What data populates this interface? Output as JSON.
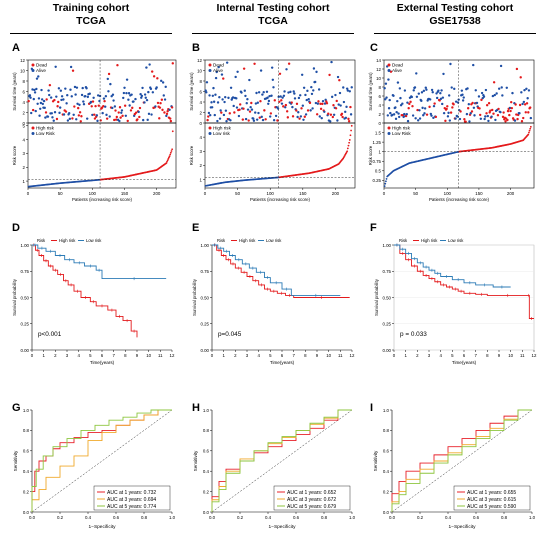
{
  "columns": [
    {
      "title": "Training cohort",
      "subtitle": "TCGA"
    },
    {
      "title": "Internal Testing cohort",
      "subtitle": "TCGA"
    },
    {
      "title": "External Testing cohort",
      "subtitle": "GSE17538"
    }
  ],
  "colors": {
    "red": "#e41a1c",
    "blue": "#1f4fa5",
    "roc_red": "#e8212a",
    "roc_orange": "#f0a92b",
    "roc_green": "#8dc63f",
    "km_red": "#e31a1c",
    "km_blue": "#2c7bb6"
  },
  "chart_data": [
    {
      "panel": "A",
      "type": "scatter",
      "kind": "risk-scatter",
      "ylabel": "Survival time (years)",
      "legend": [
        "Dead",
        "Alive"
      ],
      "legend_position": "top-left",
      "n": 225,
      "cutoff_x": 112,
      "yticks": [
        0,
        2,
        4,
        6,
        8,
        10,
        12
      ],
      "ylim": [
        0,
        12
      ]
    },
    {
      "panel": "A",
      "type": "line",
      "kind": "risk-score",
      "ylabel": "Risk score",
      "xlabel": "Patients (increasing risk score)",
      "legend": [
        "High risk",
        "Low Risk"
      ],
      "legend_position": "top-left",
      "x": [
        1,
        50,
        100,
        112,
        150,
        200,
        215,
        220,
        224,
        225
      ],
      "y": [
        0.6,
        0.85,
        1.05,
        1.1,
        1.3,
        1.8,
        2.3,
        2.8,
        3.3,
        4.6
      ],
      "xticks": [
        0,
        50,
        100,
        150,
        200
      ],
      "yticks": [
        1,
        2,
        3,
        4,
        5
      ],
      "ylim": [
        0.5,
        5.2
      ],
      "cutoff_y": 1.1
    },
    {
      "panel": "B",
      "type": "scatter",
      "kind": "risk-scatter",
      "ylabel": "Survival time (years)",
      "legend": [
        "Dead",
        "Alive"
      ],
      "legend_position": "top-left",
      "n": 225,
      "cutoff_x": 113,
      "yticks": [
        0,
        2,
        4,
        6,
        8,
        10,
        12
      ],
      "ylim": [
        0,
        12
      ]
    },
    {
      "panel": "B",
      "type": "line",
      "kind": "risk-score",
      "ylabel": "Risk score",
      "xlabel": "Patients (increasing risk score)",
      "legend": [
        "High risk",
        "Low risk"
      ],
      "legend_position": "top-left",
      "x": [
        1,
        30,
        60,
        113,
        160,
        190,
        205,
        212,
        218,
        222,
        225
      ],
      "y": [
        0.55,
        0.8,
        0.95,
        1.15,
        1.45,
        1.75,
        2.1,
        2.5,
        3.0,
        3.8,
        4.8
      ],
      "xticks": [
        0,
        50,
        100,
        150,
        200
      ],
      "yticks": [
        1,
        2,
        3,
        4
      ],
      "ylim": [
        0.4,
        5.0
      ],
      "cutoff_y": 1.15
    },
    {
      "panel": "C",
      "type": "scatter",
      "kind": "risk-scatter",
      "ylabel": "Survival time (years)",
      "legend": [
        "Dead",
        "Alive"
      ],
      "legend_position": "top-left",
      "n": 232,
      "cutoff_x": 118,
      "yticks": [
        0,
        2,
        4,
        6,
        8,
        10,
        12,
        14
      ],
      "ylim": [
        0,
        14
      ]
    },
    {
      "panel": "C",
      "type": "line",
      "kind": "risk-score",
      "ylabel": "Risk score",
      "xlabel": "Patients (increasing risk score)",
      "legend": [
        "High risk",
        "Low Risk"
      ],
      "legend_position": "top-left",
      "x": [
        1,
        5,
        15,
        40,
        118,
        170,
        200,
        220,
        228,
        232
      ],
      "y": [
        0.1,
        0.35,
        0.5,
        0.7,
        1.0,
        1.1,
        1.2,
        1.3,
        1.45,
        1.65
      ],
      "xticks": [
        0,
        50,
        100,
        150,
        200
      ],
      "yticks": [
        0.25,
        0.5,
        0.75,
        1,
        1.25,
        1.5
      ],
      "ylim": [
        0.05,
        1.75
      ],
      "cutoff_y": 1.0
    },
    {
      "panel": "D",
      "type": "line",
      "kind": "km",
      "ylabel": "Survival probability",
      "xlabel": "Time(years)",
      "legend_title": "Risk",
      "legend": [
        "High risk",
        "Low risk"
      ],
      "annotation": "p<0.001",
      "xticks": [
        0,
        1,
        2,
        3,
        4,
        5,
        6,
        7,
        8,
        9,
        10,
        11,
        12
      ],
      "yticks": [
        0,
        0.25,
        0.5,
        0.75,
        1
      ],
      "xlim": [
        0,
        12
      ],
      "ylim": [
        0,
        1
      ],
      "series": [
        {
          "name": "High risk",
          "x": [
            0,
            0.3,
            0.6,
            1.0,
            1.4,
            1.8,
            2.2,
            2.7,
            3.1,
            3.6,
            4.2,
            5.0,
            5.5,
            6.5,
            7.2,
            7.8,
            8.5,
            9.0
          ],
          "y": [
            1,
            0.95,
            0.9,
            0.85,
            0.8,
            0.76,
            0.72,
            0.66,
            0.62,
            0.56,
            0.5,
            0.46,
            0.42,
            0.38,
            0.32,
            0.28,
            0.18,
            0.12
          ]
        },
        {
          "name": "Low risk",
          "x": [
            0,
            0.5,
            1.2,
            2.0,
            2.8,
            3.6,
            4.5,
            5.5,
            6.0,
            11.5
          ],
          "y": [
            1,
            0.97,
            0.94,
            0.9,
            0.86,
            0.83,
            0.8,
            0.76,
            0.68,
            0.68
          ]
        }
      ]
    },
    {
      "panel": "E",
      "type": "line",
      "kind": "km",
      "ylabel": "Survival probability",
      "xlabel": "Time(years)",
      "legend_title": "Risk",
      "legend": [
        "High risk",
        "Low risk"
      ],
      "annotation": "p=0.045",
      "xticks": [
        0,
        1,
        2,
        3,
        4,
        5,
        6,
        7,
        8,
        9,
        10,
        11,
        12
      ],
      "yticks": [
        0,
        0.25,
        0.5,
        0.75,
        1
      ],
      "xlim": [
        0,
        12
      ],
      "ylim": [
        0,
        1
      ],
      "series": [
        {
          "name": "High risk",
          "x": [
            0,
            0.4,
            0.8,
            1.2,
            1.6,
            2.0,
            2.5,
            3.0,
            3.5,
            4.0,
            4.5,
            5.0,
            5.6,
            6.3,
            7.0,
            11.8
          ],
          "y": [
            1,
            0.95,
            0.9,
            0.86,
            0.82,
            0.78,
            0.74,
            0.7,
            0.66,
            0.62,
            0.58,
            0.56,
            0.54,
            0.52,
            0.5,
            0.5
          ]
        },
        {
          "name": "Low risk",
          "x": [
            0,
            0.5,
            1.0,
            1.5,
            2.0,
            2.6,
            3.2,
            3.8,
            4.5,
            5.0,
            6.0,
            6.8,
            11.0
          ],
          "y": [
            1,
            0.97,
            0.94,
            0.9,
            0.86,
            0.82,
            0.78,
            0.74,
            0.69,
            0.64,
            0.58,
            0.52,
            0.52
          ]
        }
      ]
    },
    {
      "panel": "F",
      "type": "line",
      "kind": "km",
      "ylabel": "Survival probability",
      "xlabel": "Time(years)",
      "legend_title": "Risk",
      "legend": [
        "High risk",
        "Low risk"
      ],
      "annotation": "p = 0.033",
      "xticks": [
        0,
        1,
        2,
        3,
        4,
        5,
        6,
        7,
        8,
        9,
        10,
        11,
        12
      ],
      "yticks": [
        0,
        0.25,
        0.5,
        0.75,
        1
      ],
      "xlim": [
        0,
        12
      ],
      "ylim": [
        0,
        1
      ],
      "series": [
        {
          "name": "High risk",
          "x": [
            0,
            0.5,
            1.0,
            1.5,
            2.0,
            2.5,
            3.0,
            3.5,
            4.0,
            4.5,
            5.0,
            5.5,
            6.0,
            7.0,
            8.0,
            11.5,
            11.6,
            12.0
          ],
          "y": [
            1,
            0.92,
            0.86,
            0.8,
            0.75,
            0.71,
            0.68,
            0.65,
            0.62,
            0.6,
            0.58,
            0.56,
            0.54,
            0.53,
            0.52,
            0.52,
            0.3,
            0.3
          ]
        },
        {
          "name": "Low risk",
          "x": [
            0,
            0.5,
            1.0,
            1.5,
            2.0,
            2.5,
            3.0,
            3.5,
            4.0,
            5.0,
            6.0,
            7.0,
            8.5,
            10.0
          ],
          "y": [
            1,
            0.96,
            0.92,
            0.87,
            0.83,
            0.79,
            0.76,
            0.73,
            0.7,
            0.67,
            0.64,
            0.62,
            0.6,
            0.6
          ]
        }
      ]
    },
    {
      "panel": "G",
      "type": "line",
      "kind": "roc",
      "ylabel": "Sensitivity",
      "xlabel": "1−Specificity",
      "xticks": [
        0,
        0.2,
        0.4,
        0.6,
        0.8,
        1.0
      ],
      "yticks": [
        0,
        0.2,
        0.4,
        0.6,
        0.8,
        1.0
      ],
      "xlim": [
        0,
        1
      ],
      "ylim": [
        0,
        1
      ],
      "series": [
        {
          "name": "AUC at 1 years: 0.732",
          "x": [
            0,
            0.02,
            0.05,
            0.1,
            0.15,
            0.2,
            0.3,
            0.4,
            0.5,
            0.6,
            0.7,
            0.8,
            0.9,
            1.0
          ],
          "y": [
            0,
            0.2,
            0.4,
            0.5,
            0.55,
            0.62,
            0.68,
            0.73,
            0.78,
            0.8,
            0.85,
            0.9,
            0.95,
            1.0
          ]
        },
        {
          "name": "AUC at 3 years: 0.694",
          "x": [
            0,
            0.05,
            0.1,
            0.2,
            0.3,
            0.4,
            0.5,
            0.6,
            0.7,
            0.8,
            0.9,
            1.0
          ],
          "y": [
            0,
            0.12,
            0.22,
            0.34,
            0.45,
            0.55,
            0.7,
            0.78,
            0.85,
            0.9,
            0.95,
            1.0
          ]
        },
        {
          "name": "AUC at 5 years: 0.774",
          "x": [
            0,
            0.03,
            0.08,
            0.15,
            0.25,
            0.35,
            0.45,
            0.55,
            0.65,
            0.75,
            0.85,
            1.0
          ],
          "y": [
            0,
            0.25,
            0.42,
            0.55,
            0.64,
            0.72,
            0.8,
            0.85,
            0.9,
            0.93,
            0.97,
            1.0
          ]
        }
      ]
    },
    {
      "panel": "H",
      "type": "line",
      "kind": "roc",
      "ylabel": "Sensitivity",
      "xlabel": "1−Specificity",
      "xticks": [
        0,
        0.2,
        0.4,
        0.6,
        0.8,
        1.0
      ],
      "yticks": [
        0,
        0.2,
        0.4,
        0.6,
        0.8,
        1.0
      ],
      "xlim": [
        0,
        1
      ],
      "ylim": [
        0,
        1
      ],
      "series": [
        {
          "name": "AUC at 1 years: 0.652",
          "x": [
            0,
            0.05,
            0.1,
            0.2,
            0.3,
            0.4,
            0.5,
            0.6,
            0.7,
            0.8,
            0.9,
            1.0
          ],
          "y": [
            0,
            0.15,
            0.3,
            0.42,
            0.5,
            0.58,
            0.64,
            0.7,
            0.76,
            0.82,
            0.9,
            1.0
          ]
        },
        {
          "name": "AUC at 3 years: 0.672",
          "x": [
            0,
            0.05,
            0.1,
            0.2,
            0.3,
            0.4,
            0.5,
            0.6,
            0.7,
            0.8,
            0.9,
            1.0
          ],
          "y": [
            0,
            0.12,
            0.25,
            0.4,
            0.52,
            0.6,
            0.67,
            0.73,
            0.8,
            0.86,
            0.92,
            1.0
          ]
        },
        {
          "name": "AUC at 5 years: 0.679",
          "x": [
            0,
            0.05,
            0.1,
            0.2,
            0.3,
            0.4,
            0.5,
            0.6,
            0.7,
            0.8,
            0.9,
            1.0
          ],
          "y": [
            0,
            0.1,
            0.22,
            0.38,
            0.5,
            0.6,
            0.68,
            0.74,
            0.8,
            0.87,
            0.93,
            1.0
          ]
        }
      ]
    },
    {
      "panel": "I",
      "type": "line",
      "kind": "roc",
      "ylabel": "Sensitivity",
      "xlabel": "1−Specificity",
      "xticks": [
        0,
        0.2,
        0.4,
        0.6,
        0.8,
        1.0
      ],
      "yticks": [
        0,
        0.2,
        0.4,
        0.6,
        0.8,
        1.0
      ],
      "xlim": [
        0,
        1
      ],
      "ylim": [
        0,
        1
      ],
      "series": [
        {
          "name": "AUC at 1 years: 0.655",
          "x": [
            0,
            0.05,
            0.1,
            0.2,
            0.3,
            0.4,
            0.5,
            0.6,
            0.7,
            0.8,
            0.9,
            1.0
          ],
          "y": [
            0,
            0.18,
            0.3,
            0.4,
            0.48,
            0.56,
            0.64,
            0.72,
            0.8,
            0.87,
            0.94,
            1.0
          ]
        },
        {
          "name": "AUC at 3 years: 0.615",
          "x": [
            0,
            0.05,
            0.1,
            0.2,
            0.3,
            0.4,
            0.5,
            0.6,
            0.7,
            0.8,
            0.9,
            1.0
          ],
          "y": [
            0,
            0.1,
            0.2,
            0.32,
            0.42,
            0.5,
            0.58,
            0.66,
            0.74,
            0.82,
            0.91,
            1.0
          ]
        },
        {
          "name": "AUC at 5 years: 0.590",
          "x": [
            0,
            0.05,
            0.1,
            0.2,
            0.3,
            0.4,
            0.5,
            0.6,
            0.7,
            0.8,
            0.9,
            1.0
          ],
          "y": [
            0,
            0.08,
            0.17,
            0.28,
            0.38,
            0.48,
            0.56,
            0.64,
            0.72,
            0.8,
            0.9,
            1.0
          ]
        }
      ]
    }
  ]
}
